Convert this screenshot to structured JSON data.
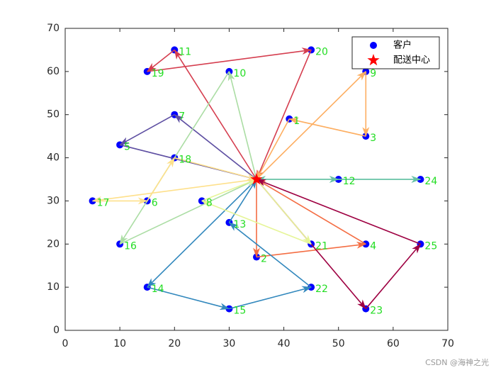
{
  "chart_data": {
    "type": "scatter",
    "xlim": [
      0,
      70
    ],
    "ylim": [
      0,
      70
    ],
    "xticks": [
      0,
      10,
      20,
      30,
      40,
      50,
      60,
      70
    ],
    "yticks": [
      0,
      10,
      20,
      30,
      40,
      50,
      60,
      70
    ],
    "legend": "upper right",
    "series": [
      {
        "name": "客户",
        "color": "#0000ff",
        "label_color": "#22dd22",
        "x": [
          41,
          35,
          55,
          55,
          10,
          15,
          20,
          25,
          55,
          30,
          20,
          50,
          30,
          15,
          30,
          10,
          5,
          20,
          15,
          45,
          45,
          45,
          55,
          65,
          65
        ],
        "y": [
          49,
          17,
          45,
          20,
          43,
          30,
          50,
          30,
          60,
          60,
          65,
          35,
          25,
          10,
          5,
          20,
          30,
          40,
          60,
          65,
          20,
          10,
          5,
          35,
          20
        ],
        "labels": [
          "1",
          "2",
          "3",
          "4",
          "5",
          "6",
          "7",
          "8",
          "9",
          "10",
          "11",
          "12",
          "13",
          "14",
          "15",
          "16",
          "17",
          "18",
          "19",
          "20",
          "21",
          "22",
          "23",
          "24",
          "25"
        ]
      },
      {
        "name": "配送中心",
        "color": "#ff0000",
        "marker": "star",
        "x": [
          35
        ],
        "y": [
          35
        ]
      }
    ],
    "routes": [
      {
        "color": "#d53e4f",
        "x": [
          35,
          20,
          15,
          45,
          35
        ],
        "y": [
          35,
          65,
          60,
          65,
          35
        ]
      },
      {
        "color": "#fdae61",
        "x": [
          35,
          55,
          55,
          41,
          35
        ],
        "y": [
          35,
          60,
          45,
          49,
          35
        ]
      },
      {
        "color": "#66c2a5",
        "x": [
          35,
          50,
          65,
          35
        ],
        "y": [
          35,
          35,
          35,
          35
        ]
      },
      {
        "color": "#f46d43",
        "x": [
          35,
          35,
          55,
          35
        ],
        "y": [
          35,
          17,
          20,
          35
        ]
      },
      {
        "color": "#9e0142",
        "x": [
          35,
          55,
          65,
          35
        ],
        "y": [
          35,
          5,
          20,
          35
        ]
      },
      {
        "color": "#3288bd",
        "x": [
          35,
          15,
          30,
          45,
          30,
          35
        ],
        "y": [
          35,
          10,
          5,
          10,
          25,
          35
        ]
      },
      {
        "color": "#5e4fa2",
        "x": [
          35,
          20,
          10,
          35
        ],
        "y": [
          35,
          50,
          43,
          35
        ]
      },
      {
        "color": "#abdda4",
        "x": [
          35,
          30,
          10,
          35
        ],
        "y": [
          35,
          60,
          20,
          35
        ]
      },
      {
        "color": "#e6f598",
        "x": [
          35,
          45,
          25,
          35
        ],
        "y": [
          35,
          20,
          30,
          35
        ]
      },
      {
        "color": "#fee08b",
        "x": [
          35,
          5,
          15,
          20,
          35
        ],
        "y": [
          35,
          30,
          30,
          40,
          35
        ]
      }
    ]
  },
  "watermark": "CSDN @海神之光"
}
